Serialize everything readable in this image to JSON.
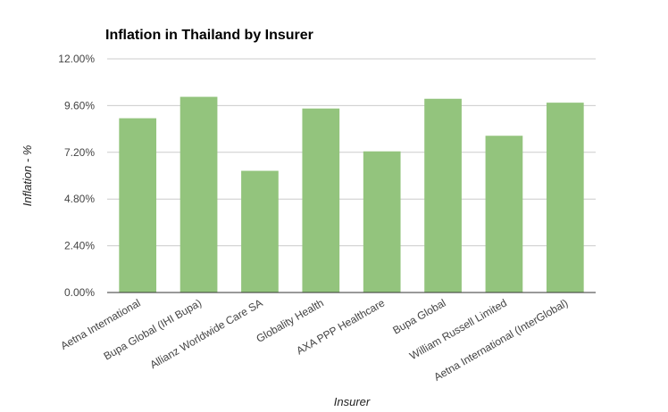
{
  "chart_data": {
    "type": "bar",
    "title": "Inflation in Thailand by Insurer",
    "xlabel": "Insurer",
    "ylabel": "Inflation - %",
    "categories": [
      "Aetna International",
      "Bupa Global (IHI Bupa)",
      "Allianz Worldwide Care SA",
      "Globality Health",
      "AXA PPP Healthcare",
      "Bupa Global",
      "William Russell Limited",
      "Aetna International (InterGlobal)"
    ],
    "values": [
      8.95,
      10.05,
      6.25,
      9.45,
      7.25,
      9.95,
      8.05,
      9.75
    ],
    "ylim": [
      0,
      12
    ],
    "yticks": [
      "0.00%",
      "2.40%",
      "4.80%",
      "7.20%",
      "9.60%",
      "12.00%"
    ],
    "ytick_values": [
      0,
      2.4,
      4.8,
      7.2,
      9.6,
      12
    ],
    "grid": true,
    "legend": "none",
    "bar_color": "#93c47d"
  }
}
